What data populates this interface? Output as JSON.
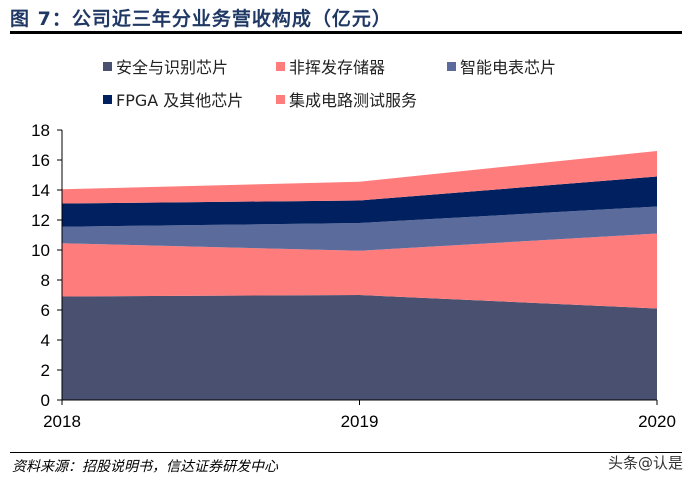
{
  "title": "图 7：公司近三年分业务营收构成（亿元）",
  "source": "资料来源：招股说明书，信达证券研发中心",
  "watermark": "头条@认是",
  "chart_data": {
    "type": "area",
    "stacked": true,
    "categories": [
      "2018",
      "2019",
      "2020"
    ],
    "ylim": [
      0,
      18
    ],
    "yticks": [
      "0",
      "2",
      "4",
      "6",
      "8",
      "10",
      "12",
      "14",
      "16",
      "18"
    ],
    "grid": false,
    "legend_position": "top",
    "series": [
      {
        "name": "安全与识别芯片",
        "color": "#4a5170",
        "values": [
          6.9,
          7.0,
          6.1
        ]
      },
      {
        "name": "非挥发存储器",
        "color": "#ff7c7c",
        "values": [
          3.55,
          2.95,
          5.0
        ]
      },
      {
        "name": "智能电表芯片",
        "color": "#5a6b9c",
        "values": [
          1.1,
          1.85,
          1.8
        ]
      },
      {
        "name": "FPGA 及其他芯片",
        "color": "#002060",
        "values": [
          1.55,
          1.5,
          2.0
        ]
      },
      {
        "name": "集成电路测试服务",
        "color": "#ff7c7c",
        "values": [
          0.95,
          1.25,
          1.7
        ]
      }
    ]
  }
}
